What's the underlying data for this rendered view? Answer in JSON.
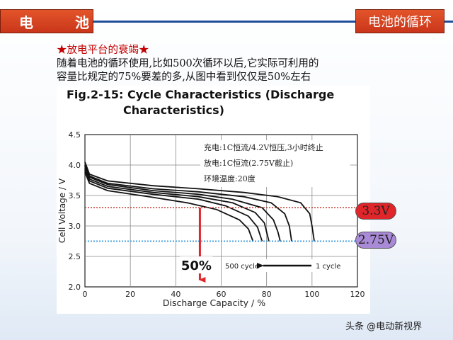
{
  "header": {
    "left_title": "电 池",
    "right_title": "电池的循环"
  },
  "intro": {
    "title": "★放电平台的衰竭★",
    "line1": "随着电池的循环使用,比如500次循环以后,它实际可利用的",
    "line2": "容量比规定的75%要差的多,从图中看到仅仅是50%左右"
  },
  "chart_data": {
    "type": "line",
    "title_line1": "Fig.2-15: Cycle Characteristics (Discharge",
    "title_line2": "Characteristics)",
    "xlabel": "Discharge  Capacity  /  %",
    "ylabel": "Cell Voltage  /  V",
    "xlim": [
      0,
      120
    ],
    "ylim": [
      2.0,
      4.5
    ],
    "xticks": [
      0,
      20,
      40,
      60,
      80,
      100,
      120
    ],
    "yticks": [
      2.0,
      2.5,
      3.0,
      3.5,
      4.0,
      4.5
    ],
    "grid": true,
    "annotations": {
      "charge": "充电:1C恒流/4.2V恒压,3小时终止",
      "discharge": "放电:1C恒流(2.75V截止)",
      "temperature": "环境温度:20度"
    },
    "cycle_arrow": {
      "from_label": "500 cycle",
      "to_label": "1 cycle"
    },
    "series": [
      {
        "values": [
          [
            0,
            4.05
          ],
          [
            2,
            3.85
          ],
          [
            10,
            3.74
          ],
          [
            30,
            3.66
          ],
          [
            50,
            3.61
          ],
          [
            70,
            3.55
          ],
          [
            85,
            3.48
          ],
          [
            95,
            3.38
          ],
          [
            99,
            3.2
          ],
          [
            100,
            3.0
          ],
          [
            101,
            2.75
          ]
        ]
      },
      {
        "values": [
          [
            0,
            4.0
          ],
          [
            2,
            3.82
          ],
          [
            10,
            3.7
          ],
          [
            30,
            3.61
          ],
          [
            50,
            3.56
          ],
          [
            70,
            3.48
          ],
          [
            82,
            3.38
          ],
          [
            88,
            3.2
          ],
          [
            90,
            3.0
          ],
          [
            91,
            2.75
          ]
        ]
      },
      {
        "values": [
          [
            0,
            3.98
          ],
          [
            2,
            3.8
          ],
          [
            10,
            3.68
          ],
          [
            30,
            3.58
          ],
          [
            50,
            3.52
          ],
          [
            65,
            3.44
          ],
          [
            78,
            3.3
          ],
          [
            83,
            3.1
          ],
          [
            85,
            2.9
          ],
          [
            86,
            2.75
          ]
        ]
      },
      {
        "values": [
          [
            0,
            3.95
          ],
          [
            2,
            3.77
          ],
          [
            10,
            3.65
          ],
          [
            30,
            3.55
          ],
          [
            50,
            3.48
          ],
          [
            65,
            3.38
          ],
          [
            75,
            3.22
          ],
          [
            79,
            3.05
          ],
          [
            81,
            2.75
          ]
        ]
      },
      {
        "values": [
          [
            0,
            3.92
          ],
          [
            2,
            3.74
          ],
          [
            10,
            3.62
          ],
          [
            30,
            3.52
          ],
          [
            50,
            3.44
          ],
          [
            62,
            3.33
          ],
          [
            72,
            3.16
          ],
          [
            76,
            2.98
          ],
          [
            78,
            2.75
          ]
        ]
      },
      {
        "values": [
          [
            0,
            3.88
          ],
          [
            2,
            3.7
          ],
          [
            10,
            3.58
          ],
          [
            30,
            3.47
          ],
          [
            45,
            3.38
          ],
          [
            58,
            3.27
          ],
          [
            68,
            3.1
          ],
          [
            72,
            2.95
          ],
          [
            74,
            2.75
          ]
        ]
      }
    ],
    "highlights": {
      "line_33": 3.3,
      "line_275": 2.75,
      "percent_x": 50,
      "percent_label": "50%",
      "label_33": "3.3V",
      "label_275": "2.75V",
      "color_33": "#c0392b",
      "color_275": "#4aa3df",
      "arrow_color": "#e0262a"
    }
  },
  "watermark": "头条 @电动新视界"
}
